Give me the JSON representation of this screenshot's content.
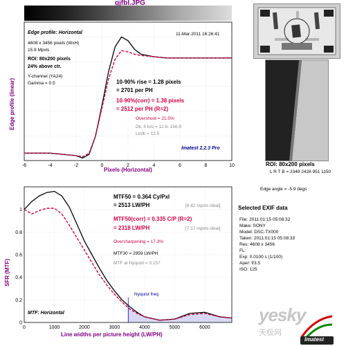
{
  "title": "gjfbl.JPG",
  "top": {
    "header": "Edge profile: Horizontal",
    "date": "11-Mar-2011 16:26:41",
    "image_size": "4608 x 3456 pixels (WxH)",
    "mpxls": "15.9 Mpxls",
    "roi": "ROI: 80x200 pixels",
    "above_ctr": "24% above ctr.",
    "channel": "Y-channel  (YA24)",
    "gamma": "Gamma = 0.5",
    "rise": "10-90% rise = 1.28 pixels",
    "rise_ph": "= 2701 per PH",
    "rise_corr": "10-90%(corr) = 1.38 pixels",
    "rise_corr_ph": "= 2512 per PH  (R=2)",
    "overshoot": "Overshoot = 21.5%",
    "levels": "Dk, lt lvls = 12.6, 156.9",
    "ratio": "Lt/dk = 12.5",
    "brand": "Imatest 2.2.3 Pro",
    "ylabel": "Edge profile (linear)",
    "xlabel": "Pixels (Horizontal)"
  },
  "bottom": {
    "mtf50": "MTF50 = 0.364 Cy/Pxl",
    "mtf50_lwph": "= 2513 LW/PH",
    "mtf50_ideal": "[8.42 mpxls ideal]",
    "mtf50_corr": "MTF50(corr) = 0.335 C/P  (R=2)",
    "mtf50_corr_lwph": "= 2318 LW/PH",
    "mtf50_corr_ideal": "[7.17 mpxls ideal]",
    "oversharpening": "Oversharpening = 17.3%",
    "mtf30": "MTF30 = 2959 LW/PH",
    "nyquist": "MTF at Nyquist = 0.157",
    "nyquist_freq": "Nyquist freq.",
    "header": "MTF: Horizontal",
    "ylabel": "SFR (MTF)",
    "xlabel": "Line widths per picture height (LW/PH)"
  },
  "side": {
    "roi_caption": "ROI: 80x200 pixels",
    "lrtb": "L R T B = 2349 2428  951 1150",
    "edge_angle": "Edge angle = -5.9 degs",
    "exif_title": "Selected EXIF data",
    "exif": [
      "File:  2011:01:15 05:08:32",
      "Make:  SONY",
      "Model:  DSC-TX000",
      "Taken:  2011:01:15 05:08:33",
      "Res:  4608 x 3456",
      "FL:",
      "Exp:  0.0100 s  (1/100)",
      "Aper:  f/3.5",
      "ISO:  125"
    ],
    "watermark": "yesky",
    "watermark_cn": "天极网",
    "imatest_logo": "Imatest"
  },
  "colors": {
    "measured": "#000000",
    "corrected": "#cc0044",
    "nyquist_fill": "#c8c8f0",
    "nyquist_line": "#0000aa"
  },
  "chart_data": [
    {
      "type": "line",
      "title": "Edge profile: Horizontal",
      "xlabel": "Pixels (Horizontal)",
      "ylabel": "Edge profile (linear)",
      "xlim": [
        -6,
        10
      ],
      "x_ticks": [
        -6,
        -4,
        -2,
        0,
        2,
        4,
        6,
        8,
        10
      ],
      "grid": true,
      "series": [
        {
          "x": [
            -6,
            -4,
            -3,
            -2,
            -1.5,
            -1,
            -0.5,
            0,
            0.5,
            1,
            1.5,
            2,
            2.5,
            3,
            4,
            5,
            6,
            7,
            8,
            9,
            10
          ],
          "y": [
            0.06,
            0.06,
            0.05,
            0.04,
            0.02,
            0.05,
            0.2,
            0.45,
            0.72,
            0.92,
            1.0,
            0.97,
            0.9,
            0.86,
            0.84,
            0.83,
            0.83,
            0.83,
            0.83,
            0.83,
            0.83
          ]
        },
        {
          "x": [
            -6,
            -4,
            -3,
            -2,
            -1.5,
            -1,
            -0.5,
            0,
            0.5,
            1,
            1.5,
            2,
            2.5,
            3,
            4,
            5,
            6,
            7,
            8,
            9,
            10
          ],
          "y": [
            0.06,
            0.06,
            0.05,
            0.04,
            0.03,
            0.06,
            0.2,
            0.43,
            0.66,
            0.82,
            0.89,
            0.88,
            0.86,
            0.85,
            0.84,
            0.83,
            0.83,
            0.83,
            0.83,
            0.83,
            0.83
          ]
        }
      ]
    },
    {
      "type": "line",
      "title": "MTF: Horizontal",
      "xlabel": "Line widths per picture height (LW/PH)",
      "ylabel": "SFR (MTF)",
      "xlim": [
        0,
        6900
      ],
      "ylim": [
        0,
        1.2
      ],
      "x_ticks": [
        0,
        1000,
        2000,
        3000,
        4000,
        5000,
        6000
      ],
      "y_ticks": [
        0,
        0.2,
        0.4,
        0.6,
        0.8,
        1
      ],
      "nyquist_x": 3456,
      "grid": true,
      "series": [
        {
          "x": [
            0,
            250,
            500,
            750,
            1000,
            1250,
            1500,
            1750,
            2000,
            2250,
            2500,
            2750,
            3000,
            3250,
            3500,
            3750,
            4000,
            4500,
            5000,
            5500,
            6000,
            6500,
            6900
          ],
          "y": [
            1.0,
            1.07,
            1.12,
            1.15,
            1.16,
            1.12,
            1.02,
            0.87,
            0.72,
            0.6,
            0.48,
            0.37,
            0.28,
            0.2,
            0.14,
            0.09,
            0.05,
            0.02,
            0.03,
            0.08,
            0.09,
            0.05,
            0.04
          ]
        },
        {
          "x": [
            0,
            250,
            500,
            750,
            1000,
            1250,
            1500,
            1750,
            2000,
            2250,
            2500,
            2750,
            3000,
            3250,
            3500,
            3750,
            4000,
            4500,
            5000,
            5500,
            6000,
            6500,
            6900
          ],
          "y": [
            1.0,
            0.96,
            0.99,
            1.01,
            1.01,
            0.96,
            0.86,
            0.75,
            0.64,
            0.53,
            0.42,
            0.33,
            0.25,
            0.18,
            0.12,
            0.08,
            0.05,
            0.02,
            0.03,
            0.07,
            0.08,
            0.05,
            0.04
          ]
        }
      ]
    }
  ]
}
